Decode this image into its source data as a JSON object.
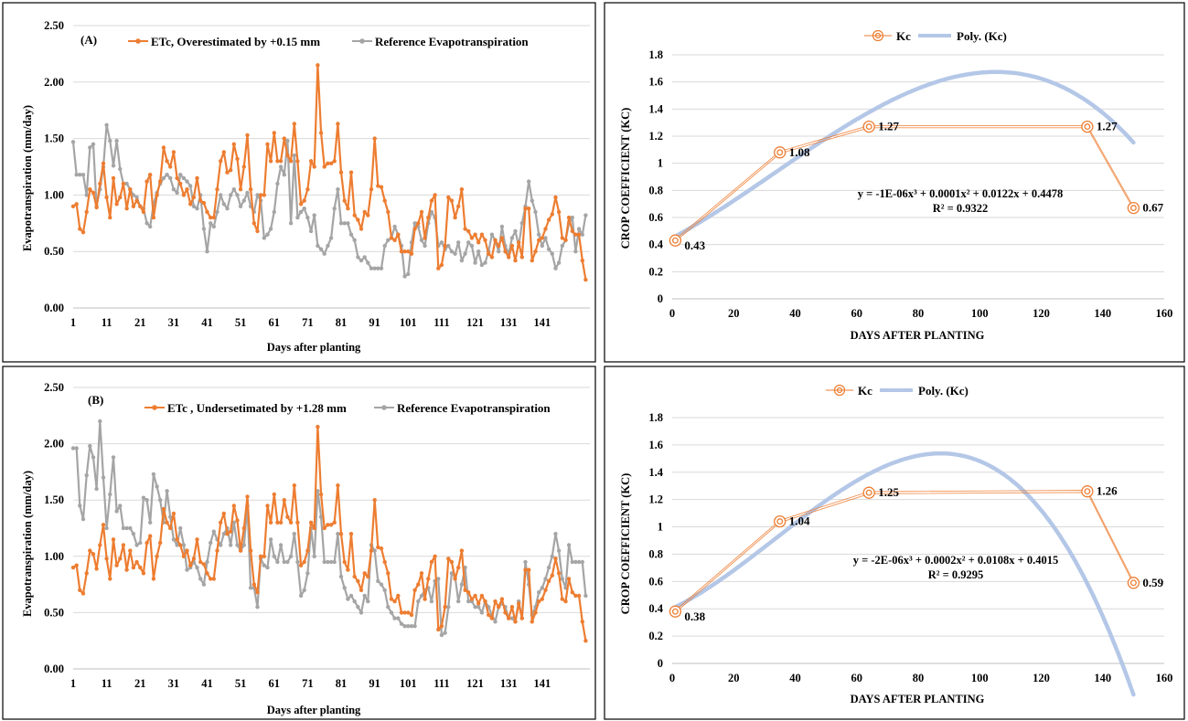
{
  "colors": {
    "etc": "#ed7d31",
    "ref": "#a5a5a5",
    "kc": "#ed7d31",
    "poly": "#b4c7e7"
  },
  "chart_data": [
    {
      "type": "line",
      "panel_tag": "(A)",
      "ylabel": "Evapotranspiration  (mm/day)",
      "xlabel": "Days after planting",
      "ylim": [
        0,
        2.5
      ],
      "yticks": [
        "0.00",
        "0.50",
        "1.00",
        "1.50",
        "2.00",
        "2.50"
      ],
      "xticks": [
        "1",
        "11",
        "21",
        "31",
        "41",
        "51",
        "61",
        "71",
        "81",
        "91",
        "101",
        "111",
        "121",
        "131",
        "141"
      ],
      "grid": true,
      "legend": "top",
      "series": [
        {
          "name": "ETc, Overestimated by +0.15 mm",
          "color": "#ed7d31",
          "values": [
            0.9,
            0.92,
            0.7,
            0.67,
            0.85,
            1.05,
            1.02,
            0.89,
            1.1,
            1.28,
            0.98,
            0.8,
            1.15,
            0.92,
            0.98,
            1.1,
            0.88,
            1.05,
            0.9,
            0.95,
            0.9,
            0.85,
            1.12,
            1.18,
            0.8,
            1.0,
            1.12,
            1.42,
            1.3,
            1.25,
            1.38,
            1.15,
            1.1,
            1.0,
            1.05,
            0.92,
            0.98,
            1.15,
            0.95,
            0.93,
            0.85,
            0.8,
            0.8,
            1.05,
            1.3,
            1.38,
            1.2,
            1.22,
            1.45,
            1.32,
            1.05,
            1.25,
            1.53,
            1.05,
            0.75,
            0.68,
            1.0,
            1.0,
            1.45,
            1.3,
            1.55,
            1.3,
            1.3,
            1.5,
            1.35,
            1.3,
            1.63,
            1.3,
            0.92,
            0.95,
            1.05,
            1.3,
            1.25,
            2.15,
            1.55,
            1.25,
            1.28,
            1.28,
            1.3,
            1.63,
            1.2,
            0.95,
            0.88,
            1.2,
            0.82,
            0.78,
            0.7,
            0.85,
            0.82,
            1.05,
            1.5,
            1.08,
            1.07,
            0.95,
            0.85,
            0.62,
            0.6,
            0.65,
            0.5,
            0.5,
            0.5,
            0.48,
            0.7,
            0.75,
            0.85,
            0.62,
            0.8,
            0.95,
            1.0,
            0.35,
            0.38,
            0.55,
            0.98,
            0.95,
            0.8,
            0.9,
            1.05,
            0.7,
            0.68,
            0.62,
            0.65,
            0.58,
            0.65,
            0.6,
            0.48,
            0.45,
            0.6,
            0.55,
            0.62,
            0.5,
            0.45,
            0.55,
            0.42,
            0.58,
            0.45,
            0.88,
            0.88,
            0.42,
            0.5,
            0.6,
            0.62,
            0.7,
            0.78,
            0.83,
            0.98,
            0.85,
            0.62,
            0.6,
            0.8,
            0.68,
            0.65,
            0.65,
            0.42,
            0.25
          ]
        },
        {
          "name": "Reference Evapotranspiration",
          "color": "#a5a5a5",
          "values": [
            1.47,
            1.18,
            1.18,
            1.18,
            1.0,
            1.42,
            1.45,
            0.9,
            1.05,
            1.25,
            1.62,
            1.48,
            1.26,
            1.48,
            1.23,
            1.1,
            1.1,
            1.05,
            1.0,
            0.98,
            0.9,
            0.88,
            0.75,
            0.72,
            0.92,
            1.02,
            1.1,
            1.15,
            1.18,
            1.15,
            1.05,
            1.02,
            1.18,
            1.15,
            1.12,
            1.08,
            0.9,
            0.88,
            1.0,
            0.7,
            0.5,
            0.75,
            0.72,
            0.85,
            1.0,
            0.92,
            0.88,
            1.0,
            1.05,
            1.0,
            0.9,
            0.95,
            1.02,
            0.9,
            0.85,
            1.0,
            0.95,
            0.62,
            0.65,
            0.7,
            0.85,
            1.1,
            1.25,
            1.18,
            1.48,
            0.75,
            1.35,
            0.8,
            0.85,
            0.88,
            0.8,
            0.68,
            0.82,
            0.55,
            0.52,
            0.48,
            0.55,
            0.62,
            0.88,
            1.05,
            0.75,
            0.75,
            0.75,
            0.65,
            0.6,
            0.45,
            0.42,
            0.45,
            0.4,
            0.35,
            0.35,
            0.35,
            0.35,
            0.55,
            0.6,
            0.62,
            0.72,
            0.65,
            0.55,
            0.28,
            0.3,
            0.58,
            0.75,
            0.72,
            0.6,
            0.55,
            0.75,
            0.85,
            0.8,
            0.55,
            0.58,
            0.52,
            0.55,
            0.5,
            0.48,
            0.58,
            0.42,
            0.48,
            0.58,
            0.55,
            0.4,
            0.5,
            0.38,
            0.4,
            0.5,
            0.65,
            0.6,
            0.5,
            0.72,
            0.55,
            0.48,
            0.62,
            0.68,
            0.55,
            0.75,
            0.9,
            1.12,
            0.95,
            0.85,
            0.65,
            0.55,
            0.62,
            0.52,
            0.48,
            0.35,
            0.4,
            0.55,
            0.6,
            0.75,
            0.8,
            0.5,
            0.7,
            0.65,
            0.82
          ]
        }
      ]
    },
    {
      "type": "scatter",
      "legend_items": [
        "Kc",
        "Poly. (Kc)"
      ],
      "ylabel": "CROP COEFFICIENT (KC)",
      "xlabel": "DAYS AFTER PLANTING",
      "xlim": [
        0,
        160
      ],
      "ylim": [
        0,
        1.8
      ],
      "xticks": [
        "0",
        "20",
        "40",
        "60",
        "80",
        "100",
        "120",
        "140",
        "160"
      ],
      "yticks": [
        "0",
        "0.2",
        "0.4",
        "0.6",
        "0.8",
        "1",
        "1.2",
        "1.4",
        "1.6",
        "1.8"
      ],
      "grid": true,
      "legend": "top",
      "x": [
        1,
        35,
        64,
        135,
        150
      ],
      "y": [
        0.43,
        1.08,
        1.27,
        1.27,
        0.67
      ],
      "point_labels": [
        "0.43",
        "1.08",
        "1.27",
        "1.27",
        "0.67"
      ],
      "poly_coeffs": [
        -1e-06,
        0.0001,
        0.0122,
        0.4478
      ],
      "equation": "y = -1E-06x³ + 0.0001x² + 0.0122x + 0.4478",
      "r2": "R² = 0.9322"
    },
    {
      "type": "line",
      "panel_tag": "(B)",
      "ylabel": "Evapotranspiration  (mm/day)",
      "xlabel": "Days after planting",
      "ylim": [
        0,
        2.5
      ],
      "yticks": [
        "0.00",
        "0.50",
        "1.00",
        "1.50",
        "2.00",
        "2.50"
      ],
      "xticks": [
        "1",
        "11",
        "21",
        "31",
        "41",
        "51",
        "61",
        "71",
        "81",
        "91",
        "101",
        "111",
        "121",
        "131",
        "141"
      ],
      "grid": true,
      "legend": "top",
      "series": [
        {
          "name": "ETc , Undersetimated by +1.28 mm",
          "color": "#ed7d31",
          "values": [
            0.9,
            0.92,
            0.7,
            0.67,
            0.85,
            1.05,
            1.02,
            0.89,
            1.1,
            1.28,
            0.98,
            0.8,
            1.15,
            0.92,
            0.98,
            1.1,
            0.88,
            1.05,
            0.9,
            0.95,
            0.9,
            0.85,
            1.12,
            1.18,
            0.8,
            1.0,
            1.12,
            1.42,
            1.3,
            1.25,
            1.38,
            1.15,
            1.1,
            1.0,
            1.05,
            0.92,
            0.98,
            1.15,
            0.95,
            0.93,
            0.85,
            0.8,
            0.8,
            1.05,
            1.3,
            1.38,
            1.2,
            1.22,
            1.45,
            1.32,
            1.05,
            1.25,
            1.53,
            1.05,
            0.75,
            0.68,
            1.0,
            1.0,
            1.45,
            1.3,
            1.55,
            1.3,
            1.3,
            1.5,
            1.35,
            1.3,
            1.63,
            1.3,
            0.92,
            0.95,
            1.05,
            1.3,
            1.25,
            2.15,
            1.55,
            1.25,
            1.28,
            1.28,
            1.3,
            1.63,
            1.2,
            0.95,
            0.88,
            1.2,
            0.82,
            0.78,
            0.7,
            0.85,
            0.82,
            1.05,
            1.5,
            1.08,
            1.07,
            0.95,
            0.85,
            0.62,
            0.6,
            0.65,
            0.5,
            0.5,
            0.5,
            0.48,
            0.7,
            0.75,
            0.85,
            0.62,
            0.8,
            0.95,
            1.0,
            0.35,
            0.38,
            0.55,
            0.98,
            0.95,
            0.8,
            0.9,
            1.05,
            0.7,
            0.68,
            0.62,
            0.65,
            0.58,
            0.65,
            0.6,
            0.48,
            0.45,
            0.6,
            0.55,
            0.62,
            0.5,
            0.45,
            0.55,
            0.42,
            0.58,
            0.45,
            0.88,
            0.88,
            0.42,
            0.5,
            0.6,
            0.62,
            0.7,
            0.78,
            0.83,
            0.98,
            0.85,
            0.62,
            0.6,
            0.8,
            0.68,
            0.65,
            0.65,
            0.42,
            0.25
          ]
        },
        {
          "name": "Reference Evapotranspiration",
          "color": "#a5a5a5",
          "values": [
            1.96,
            1.96,
            1.45,
            1.33,
            1.72,
            1.98,
            1.88,
            1.6,
            2.2,
            1.7,
            1.25,
            1.55,
            1.88,
            1.4,
            1.45,
            1.25,
            1.25,
            1.25,
            1.2,
            1.1,
            1.12,
            1.52,
            1.5,
            1.3,
            1.73,
            1.62,
            1.5,
            1.3,
            1.58,
            1.35,
            1.15,
            1.1,
            1.25,
            1.1,
            0.88,
            0.9,
            0.95,
            0.9,
            0.8,
            0.75,
            0.95,
            1.12,
            1.22,
            1.15,
            1.1,
            1.2,
            1.25,
            1.1,
            1.3,
            1.1,
            1.05,
            1.1,
            1.45,
            0.72,
            0.72,
            0.55,
            0.98,
            0.92,
            0.9,
            1.15,
            1.0,
            0.95,
            1.1,
            0.95,
            0.95,
            1.0,
            1.2,
            0.95,
            0.65,
            0.7,
            0.85,
            1.25,
            1.0,
            1.58,
            1.35,
            0.95,
            0.95,
            0.95,
            0.95,
            1.2,
            0.82,
            0.72,
            0.62,
            0.65,
            0.6,
            0.55,
            0.5,
            0.65,
            0.6,
            1.1,
            1.05,
            0.78,
            0.75,
            0.7,
            0.55,
            0.5,
            0.45,
            0.45,
            0.4,
            0.38,
            0.38,
            0.38,
            0.38,
            0.6,
            0.65,
            0.7,
            0.72,
            0.6,
            0.78,
            0.8,
            0.3,
            0.32,
            0.55,
            0.85,
            0.82,
            0.6,
            0.75,
            0.9,
            0.6,
            0.6,
            0.55,
            0.55,
            0.5,
            0.6,
            0.55,
            0.48,
            0.42,
            0.55,
            0.58,
            0.55,
            0.45,
            0.45,
            0.42,
            0.6,
            0.45,
            0.95,
            0.75,
            0.48,
            0.55,
            0.68,
            0.72,
            0.8,
            0.9,
            1.0,
            1.2,
            1.05,
            0.8,
            0.72,
            1.1,
            0.95,
            0.95,
            0.95,
            0.95,
            0.65
          ]
        }
      ]
    },
    {
      "type": "scatter",
      "legend_items": [
        "Kc",
        "Poly. (Kc)"
      ],
      "ylabel": "CROP COEFFICIENT (KC)",
      "xlabel": "DAYS AFTER PLANTING",
      "xlim": [
        0,
        160
      ],
      "ylim": [
        0,
        1.8
      ],
      "xticks": [
        "0",
        "20",
        "40",
        "60",
        "80",
        "100",
        "120",
        "140",
        "160"
      ],
      "yticks": [
        "0",
        "0.2",
        "0.4",
        "0.6",
        "0.8",
        "1",
        "1.2",
        "1.4",
        "1.6",
        "1.8"
      ],
      "grid": true,
      "legend": "top",
      "x": [
        1,
        35,
        64,
        135,
        150
      ],
      "y": [
        0.38,
        1.04,
        1.25,
        1.26,
        0.59
      ],
      "point_labels": [
        "0.38",
        "1.04",
        "1.25",
        "1.26",
        "0.59"
      ],
      "poly_coeffs": [
        -2e-06,
        0.0002,
        0.0108,
        0.4015
      ],
      "equation": "y = -2E-06x³ + 0.0002x² + 0.0108x + 0.4015",
      "r2": "R² = 0.9295"
    }
  ]
}
